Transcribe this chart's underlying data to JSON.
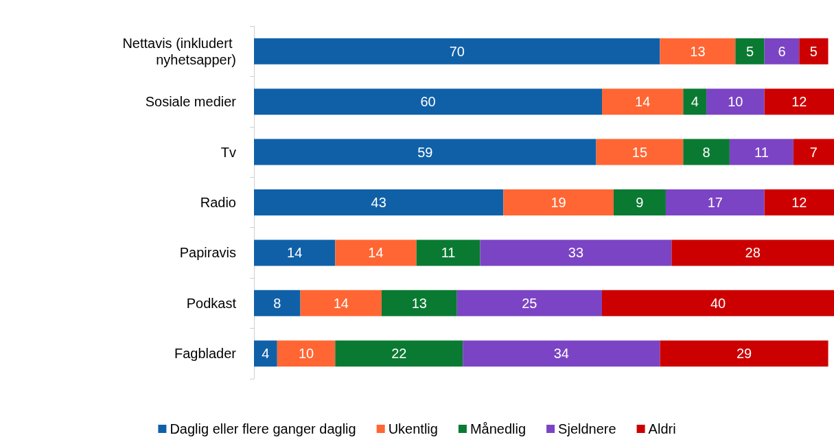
{
  "chart_data": {
    "type": "bar",
    "orientation": "horizontal",
    "stacked": true,
    "categories": [
      "Nettavis (inkludert nyhetsapper)",
      "Sosiale medier",
      "Tv",
      "Radio",
      "Papiravis",
      "Podkast",
      "Fagblader"
    ],
    "series": [
      {
        "name": "Daglig eller flere ganger daglig",
        "color": "#1060a8",
        "values": [
          70,
          60,
          59,
          43,
          14,
          8,
          4
        ]
      },
      {
        "name": "Ukentlig",
        "color": "#ff6633",
        "values": [
          13,
          14,
          15,
          19,
          14,
          14,
          10
        ]
      },
      {
        "name": "Månedlig",
        "color": "#0a7a32",
        "values": [
          5,
          4,
          8,
          9,
          11,
          13,
          22
        ]
      },
      {
        "name": "Sjeldnere",
        "color": "#7b44c4",
        "values": [
          6,
          10,
          11,
          17,
          33,
          25,
          34
        ]
      },
      {
        "name": "Aldri",
        "color": "#cc0000",
        "values": [
          5,
          12,
          7,
          12,
          28,
          40,
          29
        ]
      }
    ],
    "xlim": [
      0,
      100
    ],
    "tick_labels": "y",
    "data_labels": true,
    "legend": "bottom",
    "grid": false
  }
}
